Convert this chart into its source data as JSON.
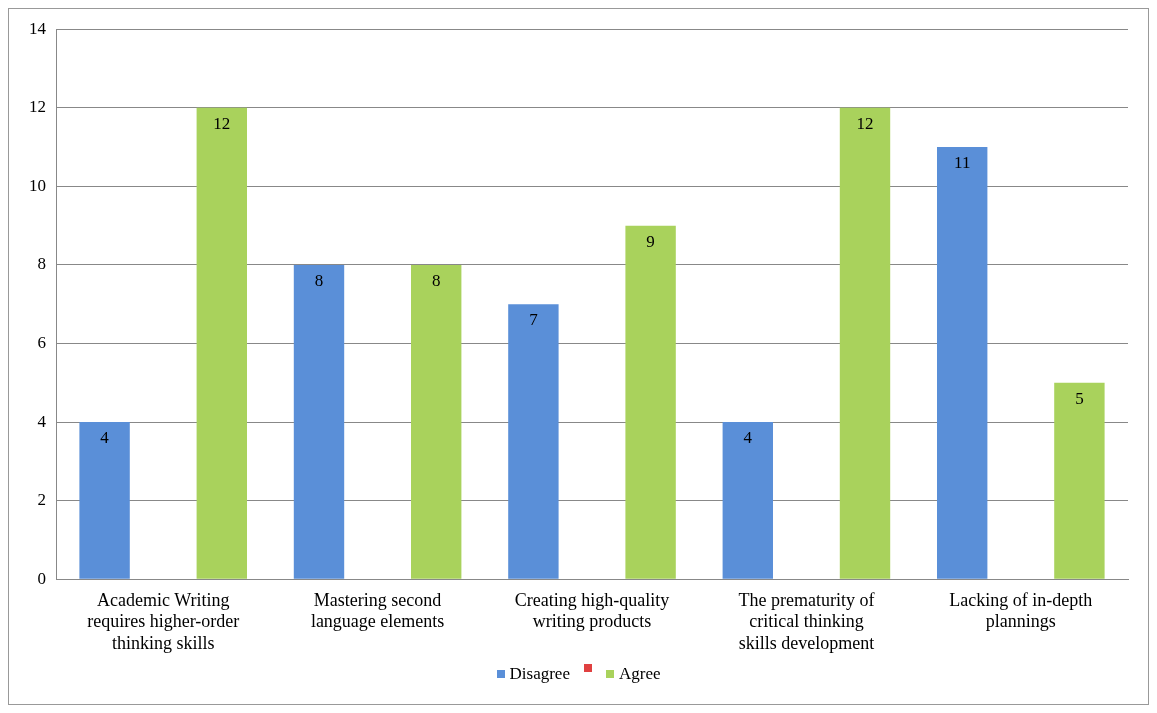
{
  "chart_data": {
    "type": "bar",
    "categories": [
      "Academic Writing requires higher-order thinking skills",
      "Mastering second language elements",
      "Creating high-quality writing products",
      "The prematurity of critical thinking skills development",
      "Lacking of in-depth plannings"
    ],
    "series": [
      {
        "name": "Disagree",
        "color": "#5a8fd8",
        "values": [
          4,
          8,
          7,
          4,
          11
        ]
      },
      {
        "color": "#e04040",
        "values": [
          null,
          null,
          null,
          null,
          null
        ]
      },
      {
        "name": "Agree",
        "color": "#a9d25c",
        "values": [
          12,
          8,
          9,
          12,
          5
        ]
      }
    ],
    "ylim": [
      0,
      14
    ],
    "yticks": [
      0,
      2,
      4,
      6,
      8,
      10,
      12,
      14
    ],
    "grid": "y",
    "legend": "bottom",
    "data_labels": true
  }
}
